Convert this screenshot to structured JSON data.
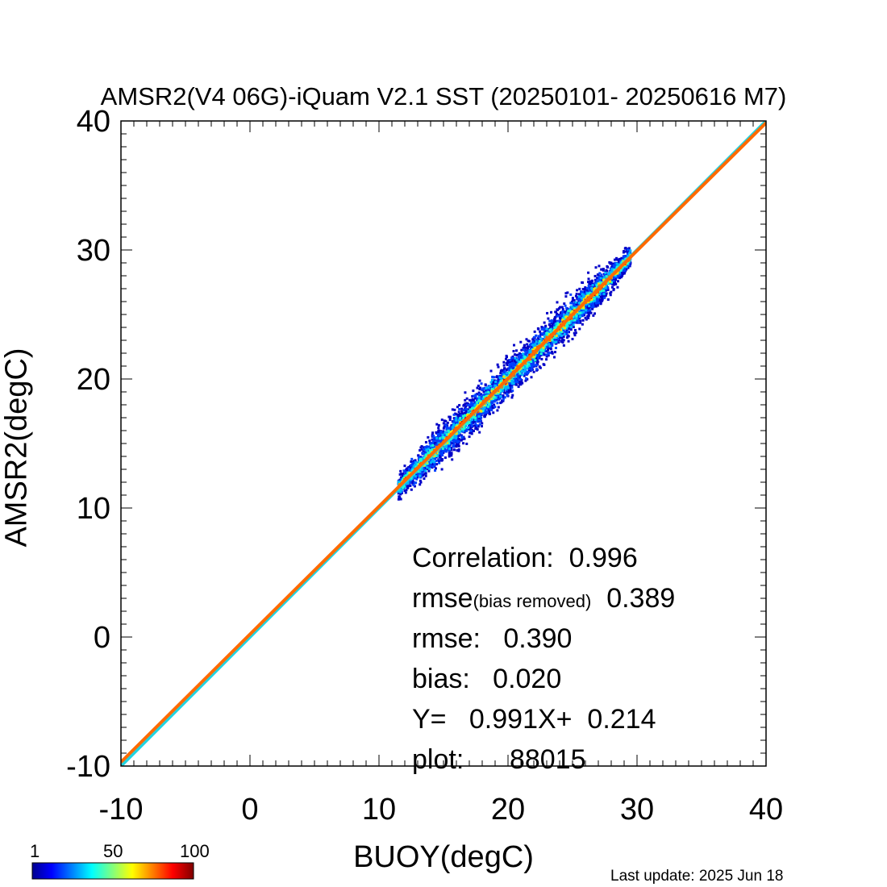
{
  "chart_data": {
    "type": "scatter",
    "title": "AMSR2(V4 06G)-iQuam V2.1 SST (20250101- 20250616 M7)",
    "xlabel": "BUOY(degC)",
    "ylabel": "AMSR2(degC)",
    "xlim": [
      -10,
      40
    ],
    "ylim": [
      -10,
      40
    ],
    "x_ticks": [
      "-10",
      "0",
      "10",
      "20",
      "30",
      "40"
    ],
    "y_ticks": [
      "-10",
      "0",
      "10",
      "20",
      "30",
      "40"
    ],
    "grid": false,
    "point_density_range": {
      "x": [
        11.5,
        29.5
      ],
      "y": [
        10.5,
        30.5
      ]
    },
    "lines": [
      {
        "label": "1:1",
        "color": "#22d3e0",
        "slope": 1.0,
        "intercept": 0.0
      },
      {
        "label": "fit",
        "color": "#ff6a00",
        "slope": 0.991,
        "intercept": 0.214
      }
    ],
    "colorbar": {
      "ticks": [
        "1",
        "50",
        "100"
      ],
      "colors": [
        "#00008f",
        "#0000ff",
        "#00ffff",
        "#ffff00",
        "#ff0000",
        "#800000"
      ]
    },
    "stats": {
      "correlation_label": "Correlation:",
      "correlation_value": "0.996",
      "rmse_br_label": "rmse",
      "rmse_br_sub": "(bias removed)",
      "rmse_br_value": "0.389",
      "rmse_label": "rmse:",
      "rmse_value": "0.390",
      "bias_label": "bias:",
      "bias_value": "0.020",
      "fit_label": "Y=",
      "fit_slope": "0.991X+",
      "fit_intercept": "0.214",
      "plot_label": "plot:",
      "plot_value": "88015"
    }
  },
  "footer": {
    "last_update": "Last update: 2025 Jun 18"
  }
}
